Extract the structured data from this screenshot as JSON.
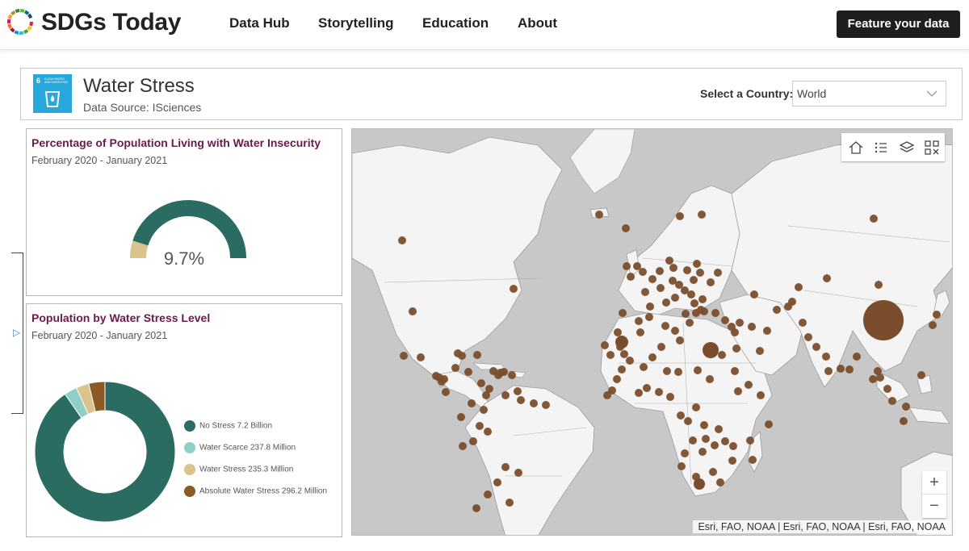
{
  "header": {
    "brand": "SDGs Today",
    "nav": [
      "Data Hub",
      "Storytelling",
      "Education",
      "About"
    ],
    "cta": "Feature your data"
  },
  "panel": {
    "badge_number": "6",
    "badge_text": "CLEAN WATER AND SANITATION",
    "title": "Water Stress",
    "source": "Data Source: ISciences",
    "country_label": "Select a Country:",
    "country_value": "World"
  },
  "gauge_card": {
    "title": "Percentage of Population Living with Water Insecurity",
    "period": "February 2020 - January 2021",
    "value_label": "9.7%",
    "value": 9.7
  },
  "donut_card": {
    "title": "Population by Water Stress Level",
    "period": "February 2020 - January 2021"
  },
  "chart_data": {
    "type": "pie",
    "categories": [
      "No Stress",
      "Water Scarce",
      "Water Stress",
      "Absolute Water Stress"
    ],
    "values": [
      7.2,
      0.2378,
      0.2353,
      0.2962
    ],
    "value_labels": [
      "7.2 Billion",
      "237.8 Million",
      "235.3 Million",
      "296.2 Million"
    ],
    "colors": [
      "#2a6b62",
      "#8fcfc6",
      "#d9c48c",
      "#8c5a24"
    ]
  },
  "map": {
    "attribution": "Esri, FAO, NOAA | Esri, FAO, NOAA | Esri, FAO, NOAA",
    "tools": [
      "home-icon",
      "list-icon",
      "layers-icon",
      "qr-icon"
    ],
    "zoom_in": "+",
    "zoom_out": "−"
  },
  "colors": {
    "accent": "#6a1a4c",
    "gauge_fill": "#2a6b62",
    "gauge_rest": "#d9c48c",
    "bubble": "#7a4e2c",
    "sdg_blue": "#26a8dd"
  }
}
